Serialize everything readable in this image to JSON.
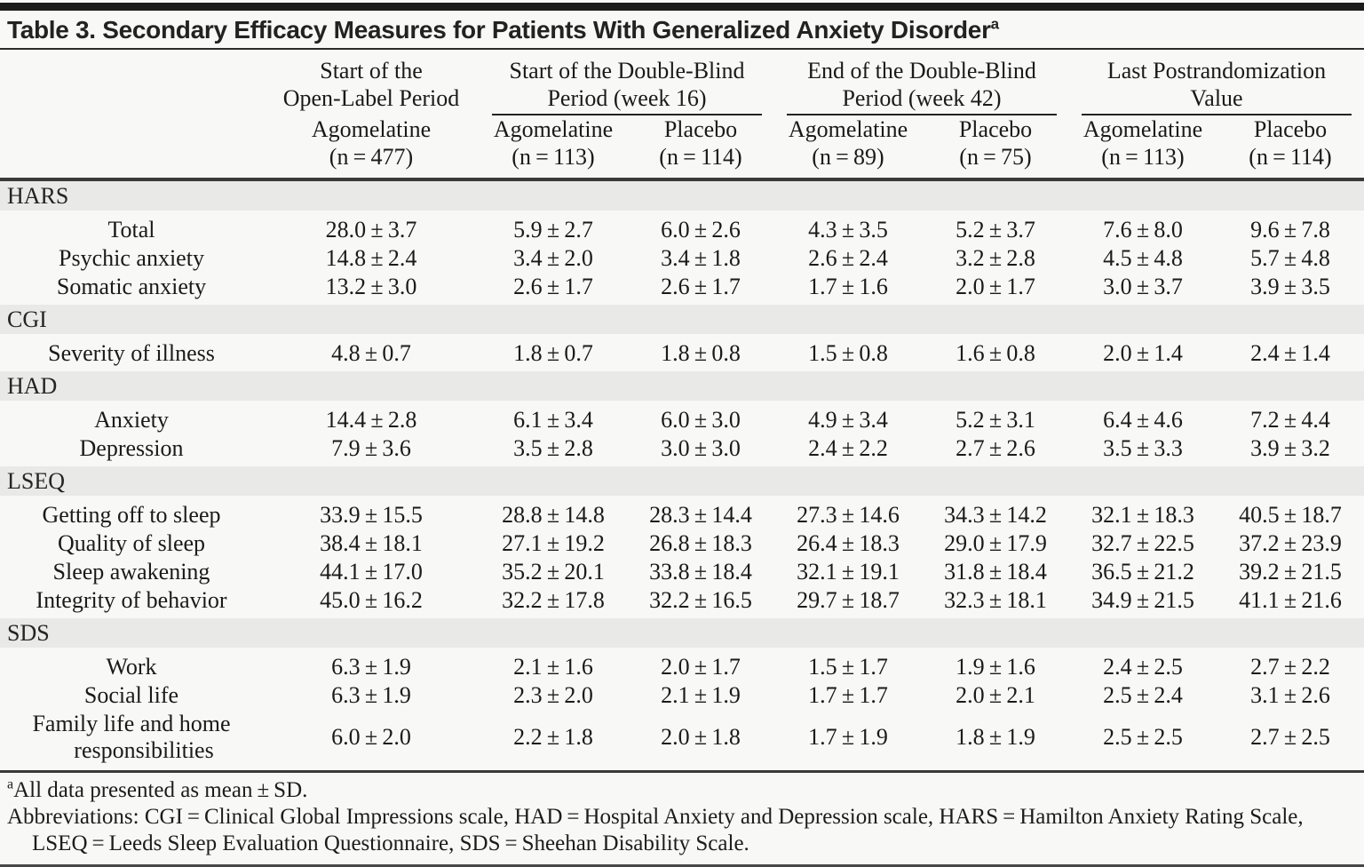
{
  "page": {
    "background_color": "#f8f8f6",
    "section_band_color": "#e9e9e7",
    "rule_color": "#3a3a3a",
    "text_color": "#1a1a1a"
  },
  "title": {
    "text": "Table 3. Secondary Efficacy Measures for Patients With Generalized Anxiety Disorder",
    "superscript": "a"
  },
  "header": {
    "open_label": {
      "line1": "Start of the",
      "line2": "Open-Label Period",
      "drug": "Agomelatine",
      "n": "(n = 477)"
    },
    "groups": [
      {
        "line1": "Start of the Double-Blind",
        "line2": "Period (week 16)",
        "columns": [
          {
            "drug": "Agomelatine",
            "n": "(n = 113)"
          },
          {
            "drug": "Placebo",
            "n": "(n = 114)"
          }
        ]
      },
      {
        "line1": "End of the Double-Blind",
        "line2": "Period (week 42)",
        "columns": [
          {
            "drug": "Agomelatine",
            "n": "(n = 89)"
          },
          {
            "drug": "Placebo",
            "n": "(n = 75)"
          }
        ]
      },
      {
        "line1": "Last Postrandomization",
        "line2": "Value",
        "columns": [
          {
            "drug": "Agomelatine",
            "n": "(n = 113)"
          },
          {
            "drug": "Placebo",
            "n": "(n = 114)"
          }
        ]
      }
    ]
  },
  "sections": [
    {
      "name": "HARS",
      "rows": [
        {
          "label": "Total",
          "values": [
            "28.0 ± 3.7",
            "5.9 ± 2.7",
            "6.0 ± 2.6",
            "4.3 ± 3.5",
            "5.2 ± 3.7",
            "7.6 ± 8.0",
            "9.6 ± 7.8"
          ]
        },
        {
          "label": "Psychic anxiety",
          "values": [
            "14.8 ± 2.4",
            "3.4 ± 2.0",
            "3.4 ± 1.8",
            "2.6 ± 2.4",
            "3.2 ± 2.8",
            "4.5 ± 4.8",
            "5.7 ± 4.8"
          ]
        },
        {
          "label": "Somatic anxiety",
          "values": [
            "13.2 ± 3.0",
            "2.6 ± 1.7",
            "2.6 ± 1.7",
            "1.7 ± 1.6",
            "2.0 ± 1.7",
            "3.0 ± 3.7",
            "3.9 ± 3.5"
          ]
        }
      ]
    },
    {
      "name": "CGI",
      "rows": [
        {
          "label": "Severity of illness",
          "values": [
            "4.8 ± 0.7",
            "1.8 ± 0.7",
            "1.8 ± 0.8",
            "1.5 ± 0.8",
            "1.6 ± 0.8",
            "2.0 ± 1.4",
            "2.4 ± 1.4"
          ]
        }
      ]
    },
    {
      "name": "HAD",
      "rows": [
        {
          "label": "Anxiety",
          "values": [
            "14.4 ± 2.8",
            "6.1 ± 3.4",
            "6.0 ± 3.0",
            "4.9 ± 3.4",
            "5.2 ± 3.1",
            "6.4 ± 4.6",
            "7.2 ± 4.4"
          ]
        },
        {
          "label": "Depression",
          "values": [
            "7.9 ± 3.6",
            "3.5 ± 2.8",
            "3.0 ± 3.0",
            "2.4 ± 2.2",
            "2.7 ± 2.6",
            "3.5 ± 3.3",
            "3.9 ± 3.2"
          ]
        }
      ]
    },
    {
      "name": "LSEQ",
      "rows": [
        {
          "label": "Getting off to sleep",
          "values": [
            "33.9 ± 15.5",
            "28.8 ± 14.8",
            "28.3 ± 14.4",
            "27.3 ± 14.6",
            "34.3 ± 14.2",
            "32.1 ± 18.3",
            "40.5 ± 18.7"
          ]
        },
        {
          "label": "Quality of sleep",
          "values": [
            "38.4 ± 18.1",
            "27.1 ± 19.2",
            "26.8 ± 18.3",
            "26.4 ± 18.3",
            "29.0 ± 17.9",
            "32.7 ± 22.5",
            "37.2 ± 23.9"
          ]
        },
        {
          "label": "Sleep awakening",
          "values": [
            "44.1 ± 17.0",
            "35.2 ± 20.1",
            "33.8 ± 18.4",
            "32.1 ± 19.1",
            "31.8 ± 18.4",
            "36.5 ± 21.2",
            "39.2 ± 21.5"
          ]
        },
        {
          "label": "Integrity of behavior",
          "values": [
            "45.0 ± 16.2",
            "32.2 ± 17.8",
            "32.2 ± 16.5",
            "29.7 ± 18.7",
            "32.3 ± 18.1",
            "34.9 ± 21.5",
            "41.1 ± 21.6"
          ]
        }
      ]
    },
    {
      "name": "SDS",
      "rows": [
        {
          "label": "Work",
          "values": [
            "6.3 ± 1.9",
            "2.1 ± 1.6",
            "2.0 ± 1.7",
            "1.5 ± 1.7",
            "1.9 ± 1.6",
            "2.4 ± 2.5",
            "2.7 ± 2.2"
          ]
        },
        {
          "label": "Social life",
          "values": [
            "6.3 ± 1.9",
            "2.3 ± 2.0",
            "2.1 ± 1.9",
            "1.7 ± 1.7",
            "2.0 ± 2.1",
            "2.5 ± 2.4",
            "3.1 ± 2.6"
          ]
        },
        {
          "label": "Family life and home responsibilities",
          "values": [
            "6.0 ± 2.0",
            "2.2 ± 1.8",
            "2.0 ± 1.8",
            "1.7 ± 1.9",
            "1.8 ± 1.9",
            "2.5 ± 2.5",
            "2.7 ± 2.5"
          ]
        }
      ]
    }
  ],
  "footnotes": [
    {
      "superscript": "a",
      "text": "All data presented as mean ± SD."
    },
    {
      "superscript": "",
      "text": "Abbreviations: CGI = Clinical Global Impressions scale, HAD = Hospital Anxiety and Depression scale, HARS = Hamilton Anxiety Rating Scale, LSEQ = Leeds Sleep Evaluation Questionnaire, SDS = Sheehan Disability Scale."
    }
  ]
}
